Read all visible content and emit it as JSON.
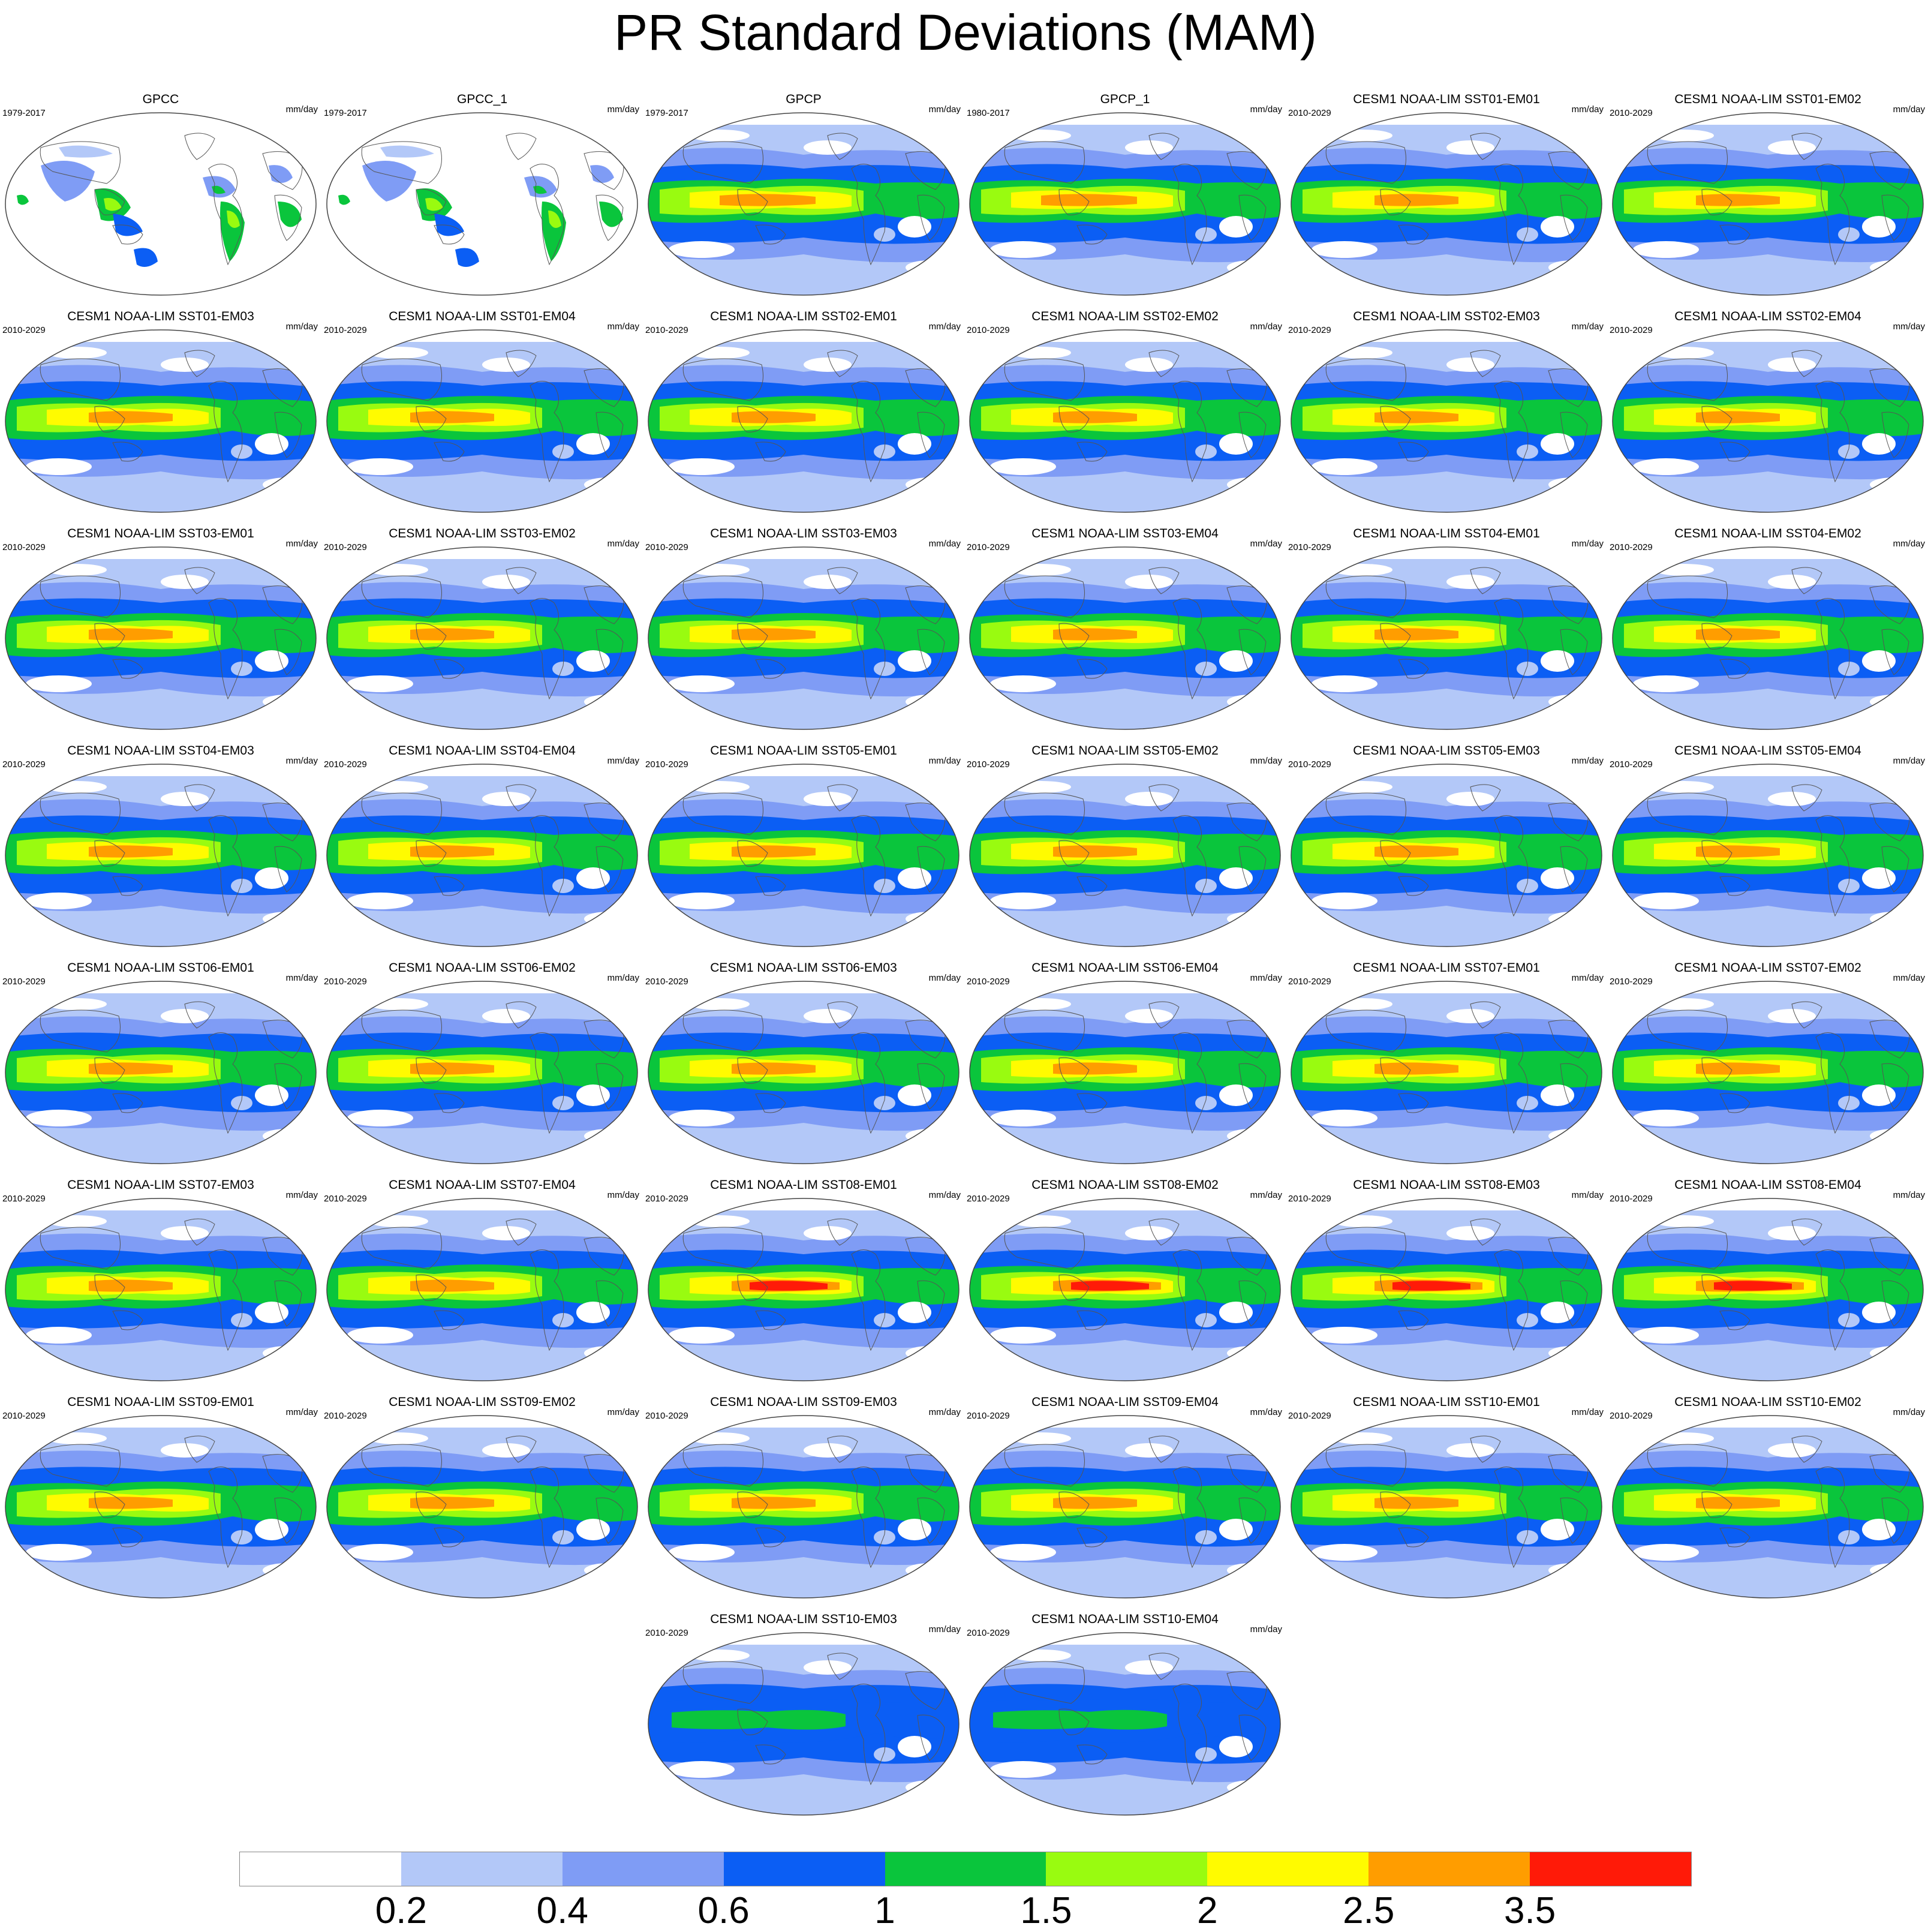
{
  "title": "PR Standard Deviations (MAM)",
  "units": "mm/day",
  "panels": [
    {
      "title": "GPCC",
      "period": "1979-2017",
      "kind": "land"
    },
    {
      "title": "GPCC_1",
      "period": "1979-2017",
      "kind": "land"
    },
    {
      "title": "GPCP",
      "period": "1979-2017",
      "kind": "obs"
    },
    {
      "title": "GPCP_1",
      "period": "1980-2017",
      "kind": "obs"
    },
    {
      "title": "CESM1 NOAA-LIM SST01-EM01",
      "period": "2010-2029",
      "kind": "model"
    },
    {
      "title": "CESM1 NOAA-LIM SST01-EM02",
      "period": "2010-2029",
      "kind": "model"
    },
    {
      "title": "CESM1 NOAA-LIM SST01-EM03",
      "period": "2010-2029",
      "kind": "model"
    },
    {
      "title": "CESM1 NOAA-LIM SST01-EM04",
      "period": "2010-2029",
      "kind": "model"
    },
    {
      "title": "CESM1 NOAA-LIM SST02-EM01",
      "period": "2010-2029",
      "kind": "model"
    },
    {
      "title": "CESM1 NOAA-LIM SST02-EM02",
      "period": "2010-2029",
      "kind": "model"
    },
    {
      "title": "CESM1 NOAA-LIM SST02-EM03",
      "period": "2010-2029",
      "kind": "model"
    },
    {
      "title": "CESM1 NOAA-LIM SST02-EM04",
      "period": "2010-2029",
      "kind": "model"
    },
    {
      "title": "CESM1 NOAA-LIM SST03-EM01",
      "period": "2010-2029",
      "kind": "model"
    },
    {
      "title": "CESM1 NOAA-LIM SST03-EM02",
      "period": "2010-2029",
      "kind": "model"
    },
    {
      "title": "CESM1 NOAA-LIM SST03-EM03",
      "period": "2010-2029",
      "kind": "model"
    },
    {
      "title": "CESM1 NOAA-LIM SST03-EM04",
      "period": "2010-2029",
      "kind": "model"
    },
    {
      "title": "CESM1 NOAA-LIM SST04-EM01",
      "period": "2010-2029",
      "kind": "model"
    },
    {
      "title": "CESM1 NOAA-LIM SST04-EM02",
      "period": "2010-2029",
      "kind": "model"
    },
    {
      "title": "CESM1 NOAA-LIM SST04-EM03",
      "period": "2010-2029",
      "kind": "model"
    },
    {
      "title": "CESM1 NOAA-LIM SST04-EM04",
      "period": "2010-2029",
      "kind": "model"
    },
    {
      "title": "CESM1 NOAA-LIM SST05-EM01",
      "period": "2010-2029",
      "kind": "model"
    },
    {
      "title": "CESM1 NOAA-LIM SST05-EM02",
      "period": "2010-2029",
      "kind": "model"
    },
    {
      "title": "CESM1 NOAA-LIM SST05-EM03",
      "period": "2010-2029",
      "kind": "model"
    },
    {
      "title": "CESM1 NOAA-LIM SST05-EM04",
      "period": "2010-2029",
      "kind": "model"
    },
    {
      "title": "CESM1 NOAA-LIM SST06-EM01",
      "period": "2010-2029",
      "kind": "model"
    },
    {
      "title": "CESM1 NOAA-LIM SST06-EM02",
      "period": "2010-2029",
      "kind": "model"
    },
    {
      "title": "CESM1 NOAA-LIM SST06-EM03",
      "period": "2010-2029",
      "kind": "model"
    },
    {
      "title": "CESM1 NOAA-LIM SST06-EM04",
      "period": "2010-2029",
      "kind": "model"
    },
    {
      "title": "CESM1 NOAA-LIM SST07-EM01",
      "period": "2010-2029",
      "kind": "model"
    },
    {
      "title": "CESM1 NOAA-LIM SST07-EM02",
      "period": "2010-2029",
      "kind": "model"
    },
    {
      "title": "CESM1 NOAA-LIM SST07-EM03",
      "period": "2010-2029",
      "kind": "model"
    },
    {
      "title": "CESM1 NOAA-LIM SST07-EM04",
      "period": "2010-2029",
      "kind": "model"
    },
    {
      "title": "CESM1 NOAA-LIM SST08-EM01",
      "period": "2010-2029",
      "kind": "strong"
    },
    {
      "title": "CESM1 NOAA-LIM SST08-EM02",
      "period": "2010-2029",
      "kind": "strong"
    },
    {
      "title": "CESM1 NOAA-LIM SST08-EM03",
      "period": "2010-2029",
      "kind": "strong"
    },
    {
      "title": "CESM1 NOAA-LIM SST08-EM04",
      "period": "2010-2029",
      "kind": "strong"
    },
    {
      "title": "CESM1 NOAA-LIM SST09-EM01",
      "period": "2010-2029",
      "kind": "model"
    },
    {
      "title": "CESM1 NOAA-LIM SST09-EM02",
      "period": "2010-2029",
      "kind": "model"
    },
    {
      "title": "CESM1 NOAA-LIM SST09-EM03",
      "period": "2010-2029",
      "kind": "model"
    },
    {
      "title": "CESM1 NOAA-LIM SST09-EM04",
      "period": "2010-2029",
      "kind": "model"
    },
    {
      "title": "CESM1 NOAA-LIM SST10-EM01",
      "period": "2010-2029",
      "kind": "model"
    },
    {
      "title": "CESM1 NOAA-LIM SST10-EM02",
      "period": "2010-2029",
      "kind": "model"
    },
    {
      "title": "CESM1 NOAA-LIM SST10-EM03",
      "period": "2010-2029",
      "kind": "weak"
    },
    {
      "title": "CESM1 NOAA-LIM SST10-EM04",
      "period": "2010-2029",
      "kind": "weak"
    }
  ],
  "colorbar": {
    "colors": [
      "#ffffff",
      "#b3c8f8",
      "#7f9cf5",
      "#0b5ef4",
      "#0ac53c",
      "#99fb10",
      "#fffb00",
      "#ff9d00",
      "#ff1a08"
    ],
    "labels": [
      "0.2",
      "0.4",
      "0.6",
      "1",
      "1.5",
      "2",
      "2.5",
      "3.5"
    ]
  }
}
